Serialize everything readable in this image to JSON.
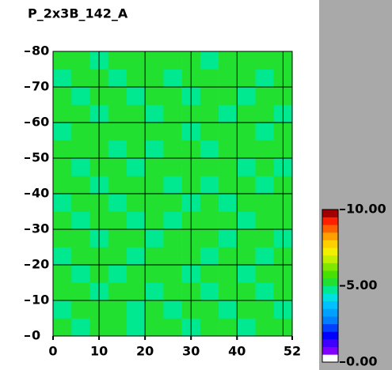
{
  "chart_data": {
    "type": "heatmap",
    "title": "P_2x3B_142_A",
    "xlim": [
      0,
      52
    ],
    "ylim": [
      0,
      80
    ],
    "xticks": [
      0,
      10,
      20,
      30,
      40,
      52
    ],
    "xgrid": [
      10,
      20,
      30,
      40,
      50
    ],
    "yticks": [
      0,
      10,
      20,
      30,
      40,
      50,
      60,
      70,
      80
    ],
    "grid": true,
    "zlim": [
      0,
      10
    ],
    "zticks": [
      {
        "value": 0,
        "label": "0.00"
      },
      {
        "value": 5,
        "label": "5.00"
      },
      {
        "value": 10,
        "label": "10.00"
      }
    ],
    "colorscale": [
      "#ffffff",
      "#8000ff",
      "#4000ff",
      "#0000ff",
      "#0040ff",
      "#0080ff",
      "#00a0ff",
      "#00c0ff",
      "#00e0e0",
      "#00e890",
      "#22e030",
      "#48e000",
      "#80e800",
      "#c0f000",
      "#f0f000",
      "#ffd000",
      "#ffa000",
      "#ff6000",
      "#ff2000",
      "#a00000"
    ],
    "z": [
      [
        5.1,
        4.9,
        5.2,
        5.0,
        4.8,
        5.1,
        5.3,
        4.9,
        5.0,
        5.2,
        4.7,
        5.1,
        5.0
      ],
      [
        4.8,
        5.2,
        5.0,
        5.1,
        4.9,
        5.0,
        4.8,
        5.2,
        5.1,
        4.9,
        5.0,
        5.3,
        4.9
      ],
      [
        5.0,
        5.1,
        4.9,
        5.2,
        5.0,
        4.7,
        5.1,
        5.0,
        4.9,
        5.1,
        5.2,
        4.8,
        5.1
      ],
      [
        5.2,
        4.9,
        5.1,
        4.8,
        5.1,
        5.2,
        5.0,
        4.9,
        5.2,
        5.0,
        4.9,
        5.1,
        5.0
      ],
      [
        4.9,
        5.0,
        5.2,
        5.1,
        4.8,
        5.0,
        5.1,
        5.2,
        4.8,
        5.1,
        5.0,
        4.9,
        5.2
      ],
      [
        5.1,
        5.2,
        4.8,
        5.0,
        5.1,
        4.9,
        5.0,
        5.1,
        5.0,
        4.8,
        5.1,
        5.2,
        4.9
      ],
      [
        5.0,
        4.8,
        5.1,
        5.2,
        4.9,
        5.1,
        4.9,
        5.0,
        5.2,
        5.1,
        4.8,
        5.0,
        5.1
      ],
      [
        4.9,
        5.1,
        5.0,
        4.9,
        5.2,
        5.0,
        5.2,
        4.8,
        5.1,
        4.9,
        5.2,
        5.1,
        5.0
      ],
      [
        5.2,
        5.0,
        4.9,
        5.1,
        5.0,
        5.2,
        4.9,
        5.1,
        4.9,
        5.0,
        5.1,
        4.8,
        5.1
      ],
      [
        5.0,
        4.9,
        5.2,
        5.0,
        4.8,
        5.1,
        5.0,
        5.2,
        5.0,
        5.2,
        4.9,
        5.1,
        4.9
      ],
      [
        5.1,
        5.2,
        5.0,
        4.8,
        5.1,
        4.9,
        5.1,
        5.0,
        4.8,
        5.1,
        5.0,
        5.2,
        5.0
      ],
      [
        4.8,
        5.0,
        5.1,
        5.2,
        5.0,
        5.1,
        5.3,
        4.9,
        5.1,
        5.0,
        5.2,
        4.9,
        5.1
      ],
      [
        5.0,
        5.1,
        4.9,
        5.0,
        5.2,
        4.8,
        5.0,
        5.1,
        5.2,
        4.9,
        5.0,
        5.1,
        4.8
      ],
      [
        5.2,
        4.9,
        5.0,
        5.1,
        4.9,
        5.0,
        5.2,
        4.8,
        5.0,
        5.1,
        4.9,
        5.0,
        5.2
      ],
      [
        4.9,
        5.1,
        5.2,
        4.9,
        5.0,
        5.2,
        4.9,
        5.0,
        5.1,
        5.2,
        5.0,
        4.8,
        5.0
      ],
      [
        5.1,
        5.0,
        4.8,
        5.1,
        5.2,
        5.0,
        5.1,
        5.2,
        4.9,
        5.0,
        5.1,
        5.0,
        5.1
      ]
    ]
  }
}
